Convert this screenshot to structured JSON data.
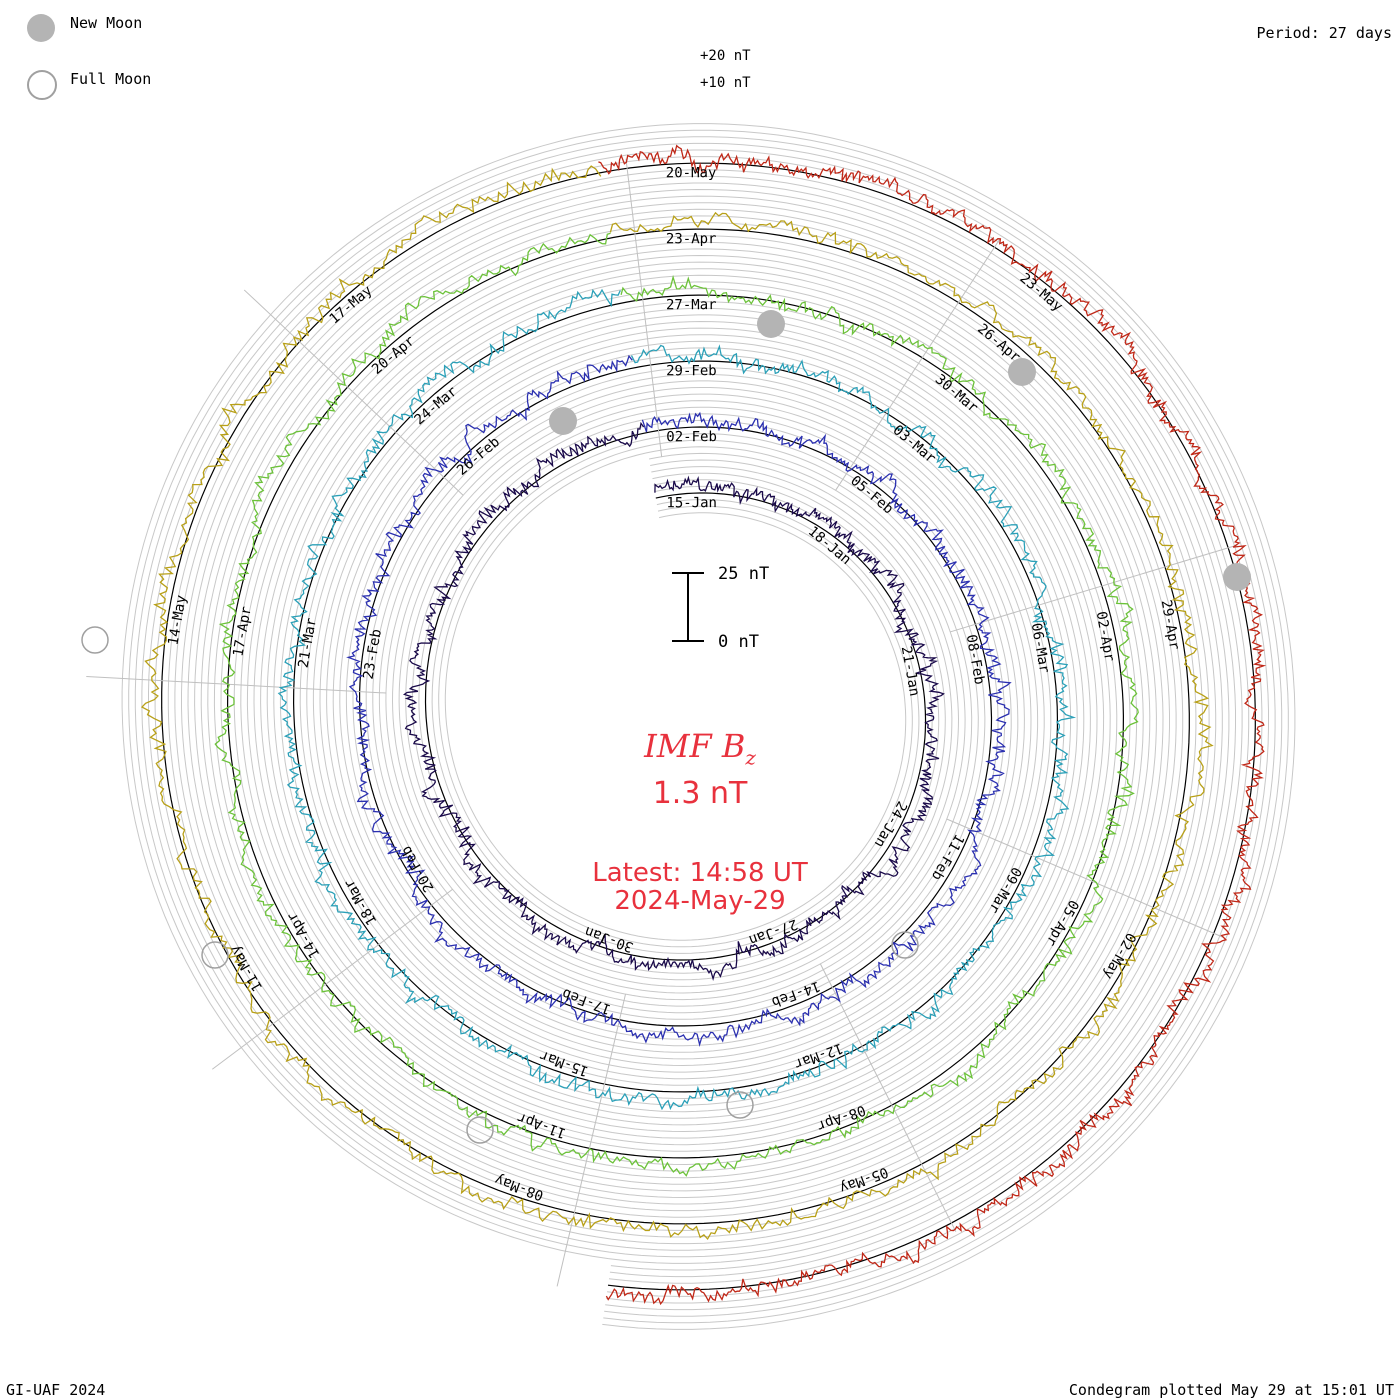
{
  "header": {
    "period": "Period: 27 days",
    "credit": "GI-UAF 2024",
    "plotted": "Condegram plotted May 29 at 15:01 UT"
  },
  "legend": [
    {
      "label": "New Moon",
      "style": "filled",
      "color": "#b4b4b4"
    },
    {
      "label": "Full Moon",
      "style": "hollow",
      "color": "#a0a0a0"
    }
  ],
  "center": {
    "title_main": "IMF B",
    "title_sub": "z",
    "value": "1.3 nT",
    "latest": "Latest: 14:58 UT",
    "date": "2024-May-29"
  },
  "chart_data": {
    "type": "line",
    "title": "IMF Bz",
    "period_days": 27,
    "unit": "nT",
    "scale_labels": [
      "+20 nT",
      "+10 nT"
    ],
    "scale_bar": {
      "top": "25 nT",
      "bottom": "0 nT"
    },
    "colors": {
      "grid": "#c8c8c8",
      "zero": "#000000",
      "spokes": "#c0c0c0",
      "text": "#000000",
      "accent": "#e8313d"
    },
    "rotations": [
      {
        "color": "#1a0a4a",
        "date_labels": [
          "15-Jan",
          "18-Jan",
          "21-Jan",
          "24-Jan",
          "27-Jan",
          "30-Jan"
        ]
      },
      {
        "color": "#2b30b0",
        "date_labels": [
          "02-Feb",
          "05-Feb",
          "08-Feb",
          "11-Feb",
          "14-Feb",
          "17-Feb",
          "20-Feb",
          "23-Feb",
          "26-Feb"
        ]
      },
      {
        "color": "#2ba0b8",
        "date_labels": [
          "29-Feb",
          "03-Mar",
          "06-Mar",
          "09-Mar",
          "12-Mar",
          "15-Mar",
          "18-Mar",
          "21-Mar",
          "24-Mar"
        ]
      },
      {
        "color": "#6cc23a",
        "date_labels": [
          "27-Mar",
          "30-Mar",
          "02-Apr",
          "05-Apr",
          "08-Apr",
          "11-Apr",
          "14-Apr",
          "17-Apr",
          "20-Apr"
        ]
      },
      {
        "color": "#b8a018",
        "date_labels": [
          "23-Apr",
          "26-Apr",
          "29-Apr",
          "02-May",
          "05-May",
          "08-May",
          "11-May",
          "14-May",
          "17-May"
        ]
      },
      {
        "color": "#c02818",
        "date_labels": [
          "20-May",
          "23-May"
        ]
      }
    ],
    "moons": [
      {
        "phase": "new",
        "date": "09-Feb"
      },
      {
        "phase": "new",
        "date": "10-Mar"
      },
      {
        "phase": "new",
        "date": "08-Apr"
      },
      {
        "phase": "new",
        "date": "08-May"
      },
      {
        "phase": "full",
        "date": "25-Jan"
      },
      {
        "phase": "full",
        "date": "24-Feb"
      },
      {
        "phase": "full",
        "date": "25-Mar"
      },
      {
        "phase": "full",
        "date": "23-Apr"
      },
      {
        "phase": "full",
        "date": "23-May"
      }
    ]
  }
}
